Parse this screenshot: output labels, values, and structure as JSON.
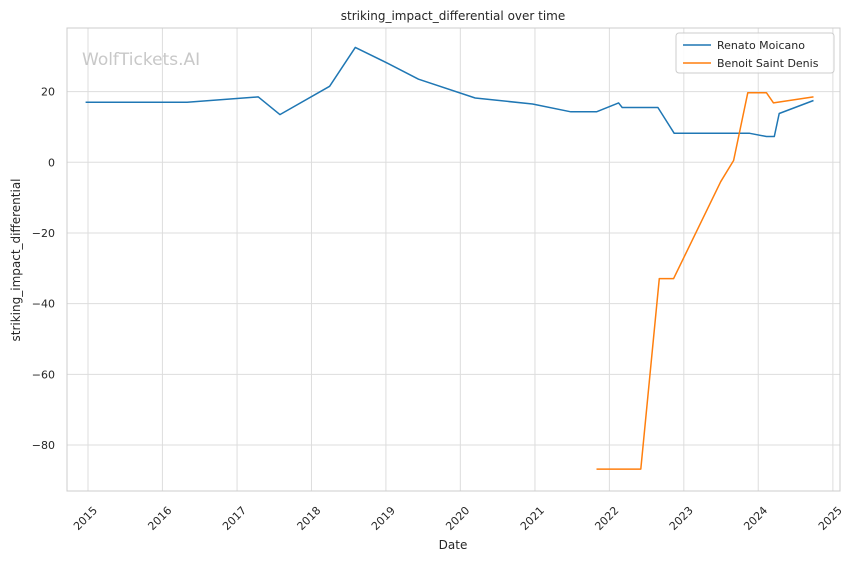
{
  "watermark": "WolfTickets.AI",
  "chart_data": {
    "type": "line",
    "title": "striking_impact_differential over time",
    "xlabel": "Date",
    "ylabel": "striking_impact_differential",
    "x_is_date": true,
    "xlim": [
      "2014-09-20",
      "2025-02-05"
    ],
    "ylim": [
      -93,
      38
    ],
    "x_ticks": [
      "2015",
      "2016",
      "2017",
      "2018",
      "2019",
      "2020",
      "2021",
      "2022",
      "2023",
      "2024",
      "2025"
    ],
    "y_ticks": [
      20,
      0,
      -20,
      -40,
      -60,
      -80
    ],
    "y_tick_labels": [
      "20",
      "0",
      "−20",
      "−40",
      "−60",
      "−80"
    ],
    "grid": true,
    "legend_position": "top-right",
    "series": [
      {
        "name": "Renato Moicano",
        "color": "#1f77b4",
        "points": [
          [
            "2014-12-20",
            17.0
          ],
          [
            "2016-05-01",
            17.0
          ],
          [
            "2017-04-15",
            18.5
          ],
          [
            "2017-07-30",
            13.5
          ],
          [
            "2018-03-31",
            21.5
          ],
          [
            "2018-08-04",
            32.5
          ],
          [
            "2019-01-10",
            28.0
          ],
          [
            "2019-06-10",
            23.5
          ],
          [
            "2020-03-14",
            18.2
          ],
          [
            "2020-12-20",
            16.5
          ],
          [
            "2021-06-26",
            14.3
          ],
          [
            "2021-10-30",
            14.3
          ],
          [
            "2022-02-15",
            16.8
          ],
          [
            "2022-03-05",
            15.5
          ],
          [
            "2022-08-27",
            15.5
          ],
          [
            "2022-11-15",
            8.2
          ],
          [
            "2023-11-20",
            8.2
          ],
          [
            "2024-02-10",
            7.3
          ],
          [
            "2024-03-20",
            7.3
          ],
          [
            "2024-04-13",
            13.8
          ],
          [
            "2024-09-28",
            17.5
          ]
        ]
      },
      {
        "name": "Benoit Saint Denis",
        "color": "#ff7f0e",
        "points": [
          [
            "2021-10-30",
            -86.8
          ],
          [
            "2022-06-04",
            -86.8
          ],
          [
            "2022-09-03",
            -32.9
          ],
          [
            "2022-11-12",
            -32.9
          ],
          [
            "2023-07-01",
            -5.5
          ],
          [
            "2023-09-02",
            0.5
          ],
          [
            "2023-11-11",
            19.7
          ],
          [
            "2024-02-10",
            19.7
          ],
          [
            "2024-03-16",
            16.8
          ],
          [
            "2024-09-28",
            18.5
          ]
        ]
      }
    ]
  }
}
